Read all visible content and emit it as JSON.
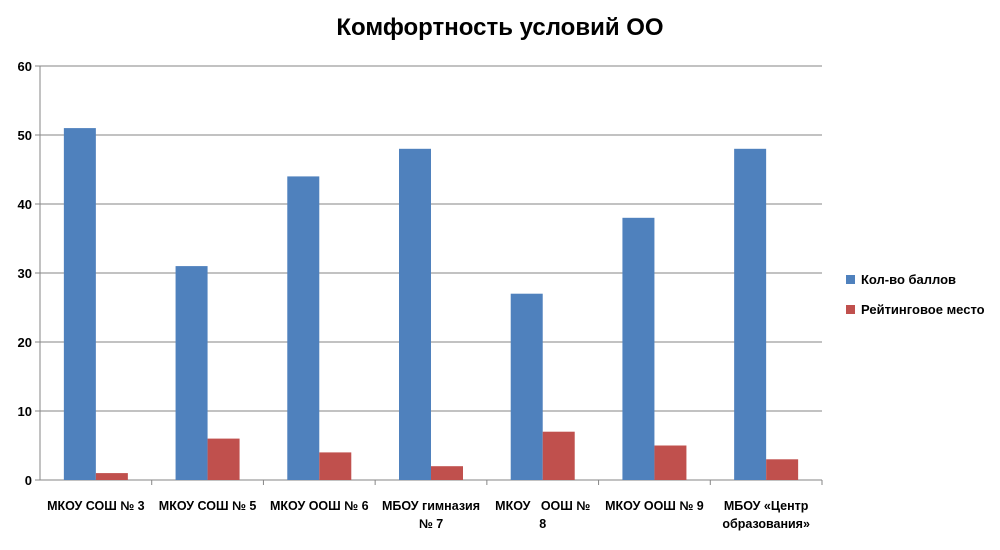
{
  "chart_data": {
    "type": "bar",
    "title": "Комфортность условий ОО",
    "categories": [
      [
        "МКОУ СОШ № 3"
      ],
      [
        "МКОУ СОШ № 5"
      ],
      [
        "МКОУ ООШ № 6"
      ],
      [
        "МБОУ гимназия",
        "№ 7"
      ],
      [
        "МКОУ   ООШ №",
        "8"
      ],
      [
        "МКОУ ООШ № 9"
      ],
      [
        "МБОУ «Центр",
        "образования»"
      ]
    ],
    "series": [
      {
        "name": "Кол-во баллов",
        "color": "#4F81BD",
        "values": [
          51,
          31,
          44,
          48,
          27,
          38,
          48
        ]
      },
      {
        "name": "Рейтинговое место",
        "color": "#C0504D",
        "values": [
          1,
          6,
          4,
          2,
          7,
          5,
          3
        ]
      }
    ],
    "ylim": [
      0,
      60
    ],
    "yticks": [
      0,
      10,
      20,
      30,
      40,
      50,
      60
    ],
    "grid": true,
    "legend_position": "right"
  }
}
